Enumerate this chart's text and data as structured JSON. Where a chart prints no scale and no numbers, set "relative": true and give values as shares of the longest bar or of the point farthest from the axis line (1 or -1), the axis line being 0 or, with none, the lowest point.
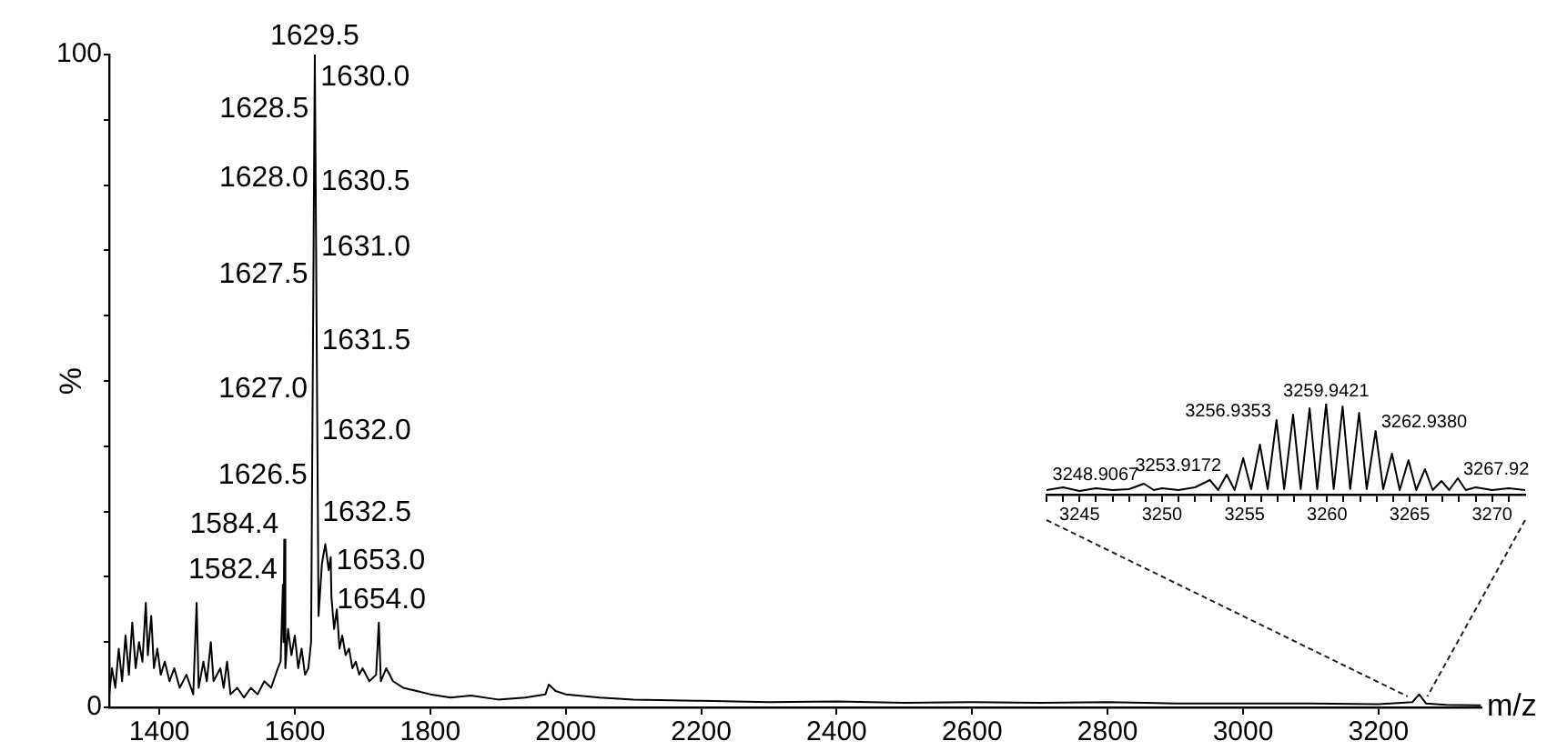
{
  "chart_data": [
    {
      "type": "line",
      "xlabel": "m/z",
      "ylabel": "%",
      "xlim": [
        1326,
        3352
      ],
      "xticks": [
        1400,
        1600,
        1800,
        2000,
        2200,
        2400,
        2600,
        2800,
        3000,
        3200
      ],
      "ylim": [
        0,
        100
      ],
      "yticks": [
        0,
        {
          "value": 10,
          "label": null
        },
        {
          "value": 20,
          "label": null
        },
        {
          "value": 30,
          "label": null
        },
        {
          "value": 40,
          "label": null
        },
        {
          "value": 50,
          "label": null
        },
        {
          "value": 60,
          "label": null
        },
        {
          "value": 70,
          "label": null
        },
        {
          "value": 80,
          "label": null
        },
        {
          "value": 90,
          "label": null
        },
        100
      ],
      "marker": "none",
      "series": [
        {
          "color": "#000000",
          "x": [
            1326,
            1330,
            1335,
            1340,
            1345,
            1350,
            1355,
            1360,
            1365,
            1370,
            1375,
            1380,
            1383,
            1388,
            1392,
            1397,
            1402,
            1408,
            1415,
            1422,
            1430,
            1440,
            1450,
            1455,
            1458,
            1465,
            1470,
            1476,
            1480,
            1490,
            1495,
            1500,
            1505,
            1515,
            1525,
            1535,
            1545,
            1555,
            1565,
            1575,
            1579,
            1582.4,
            1583.3,
            1584.4,
            1586,
            1590,
            1595,
            1600,
            1605,
            1610,
            1615,
            1620,
            1624,
            1629.5,
            1635,
            1640,
            1645,
            1650,
            1653,
            1654,
            1658,
            1662,
            1666,
            1670,
            1675,
            1680,
            1685,
            1690,
            1695,
            1700,
            1710,
            1720,
            1724,
            1727,
            1735,
            1745,
            1760,
            1780,
            1800,
            1830,
            1860,
            1900,
            1940,
            1970,
            1975,
            1985,
            2000,
            2050,
            2100,
            2200,
            2300,
            2400,
            2500,
            2600,
            2700,
            2800,
            2900,
            3000,
            3100,
            3200,
            3250,
            3260,
            3270,
            3300,
            3350
          ],
          "values": [
            2,
            6,
            3,
            9,
            4,
            11,
            5,
            13,
            6,
            10,
            7,
            16,
            8,
            14,
            6,
            9,
            5,
            7,
            4,
            6,
            3,
            5,
            2,
            16,
            3,
            7,
            4,
            10,
            4,
            6,
            3,
            7,
            2,
            3,
            1.5,
            3,
            2,
            4,
            3,
            6,
            7,
            18.8,
            10,
            25.7,
            6,
            12,
            8,
            11,
            6,
            9,
            5,
            6,
            10,
            100,
            14,
            22,
            25,
            21,
            23,
            17,
            12,
            15,
            9,
            11,
            8,
            9,
            6,
            7,
            5,
            6,
            4,
            5,
            13,
            4,
            6,
            4,
            3,
            2.5,
            2,
            1.5,
            1.8,
            1.2,
            1.5,
            2,
            3.5,
            2.5,
            2,
            1.5,
            1.2,
            1,
            0.8,
            0.9,
            0.7,
            0.8,
            0.7,
            0.8,
            0.6,
            0.6,
            0.6,
            0.5,
            0.8,
            2,
            0.6,
            0.4,
            0.3
          ]
        }
      ],
      "annotations": [
        {
          "text": "1629.5",
          "x": 1629.5,
          "y": 100
        },
        {
          "text": "1630.0",
          "x": 1630,
          "y": 97
        },
        {
          "text": "1628.5",
          "x": 1628.5,
          "y": 89.4
        },
        {
          "text": "1630.5",
          "x": 1630.5,
          "y": 81
        },
        {
          "text": "1628.0",
          "x": 1628,
          "y": 78.8
        },
        {
          "text": "1631.0",
          "x": 1631,
          "y": 71
        },
        {
          "text": "1627.5",
          "x": 1627.5,
          "y": 64
        },
        {
          "text": "1631.5",
          "x": 1631.5,
          "y": 56.7
        },
        {
          "text": "1627.0",
          "x": 1627,
          "y": 46.5
        },
        {
          "text": "1632.0",
          "x": 1632,
          "y": 42.9
        },
        {
          "text": "1626.5",
          "x": 1626.5,
          "y": 33.2
        },
        {
          "text": "1632.5",
          "x": 1632.5,
          "y": 30.4
        },
        {
          "text": "1584.4",
          "x": 1584.4,
          "y": 25.7
        },
        {
          "text": "1653.0",
          "x": 1653,
          "y": 23
        },
        {
          "text": "1582.4",
          "x": 1582.4,
          "y": 18.8
        },
        {
          "text": "1654.0",
          "x": 1654,
          "y": 17
        }
      ]
    },
    {
      "type": "line",
      "relative": true,
      "xlim": [
        3243,
        3272
      ],
      "xticks": [
        {
          "value": 3243,
          "label": null
        },
        {
          "value": 3244,
          "label": null
        },
        3245,
        {
          "value": 3246,
          "label": null
        },
        {
          "value": 3247,
          "label": null
        },
        {
          "value": 3248,
          "label": null
        },
        {
          "value": 3249,
          "label": null
        },
        3250,
        {
          "value": 3251,
          "label": null
        },
        {
          "value": 3252,
          "label": null
        },
        {
          "value": 3253,
          "label": null
        },
        {
          "value": 3254,
          "label": null
        },
        3255,
        {
          "value": 3256,
          "label": null
        },
        {
          "value": 3257,
          "label": null
        },
        {
          "value": 3258,
          "label": null
        },
        {
          "value": 3259,
          "label": null
        },
        3260,
        {
          "value": 3261,
          "label": null
        },
        {
          "value": 3262,
          "label": null
        },
        {
          "value": 3263,
          "label": null
        },
        {
          "value": 3264,
          "label": null
        },
        3265,
        {
          "value": 3266,
          "label": null
        },
        {
          "value": 3267,
          "label": null
        },
        {
          "value": 3268,
          "label": null
        },
        {
          "value": 3269,
          "label": null
        },
        3270,
        {
          "value": 3271,
          "label": null
        }
      ],
      "marker": "none",
      "series": [
        {
          "color": "#000000",
          "x": [
            3243,
            3244,
            3245,
            3246,
            3247,
            3248,
            3248.9067,
            3249.5,
            3250,
            3251,
            3252,
            3252.9,
            3253.4,
            3253.9172,
            3254.4,
            3254.92,
            3255.4,
            3255.93,
            3256.4,
            3256.9353,
            3257.4,
            3257.94,
            3258.4,
            3258.94,
            3259.4,
            3259.9421,
            3260.4,
            3260.94,
            3261.4,
            3261.94,
            3262.4,
            3262.938,
            3263.4,
            3263.93,
            3264.4,
            3264.93,
            3265.4,
            3265.93,
            3266.4,
            3266.93,
            3267.4,
            3267.92,
            3268.4,
            3269,
            3270,
            3271,
            3272
          ],
          "values": [
            0.05,
            0.08,
            0.04,
            0.07,
            0.05,
            0.06,
            0.12,
            0.05,
            0.07,
            0.05,
            0.08,
            0.16,
            0.05,
            0.22,
            0.05,
            0.4,
            0.06,
            0.55,
            0.06,
            0.82,
            0.06,
            0.88,
            0.06,
            0.95,
            0.06,
            1,
            0.06,
            0.97,
            0.06,
            0.9,
            0.06,
            0.7,
            0.06,
            0.45,
            0.05,
            0.38,
            0.05,
            0.28,
            0.05,
            0.15,
            0.05,
            0.18,
            0.05,
            0.08,
            0.05,
            0.07,
            0.05
          ]
        }
      ],
      "annotations": [
        {
          "text": "3248.9067",
          "x": 3248.9067,
          "y": 0.12
        },
        {
          "text": "3253.9172",
          "x": 3253.9172,
          "y": 0.22
        },
        {
          "text": "3256.9353",
          "x": 3256.9353,
          "y": 0.82
        },
        {
          "text": "3259.9421",
          "x": 3259.9421,
          "y": 1
        },
        {
          "text": "3262.9380",
          "x": 3262.938,
          "y": 0.7
        },
        {
          "text": "3267.92",
          "x": 3267.92,
          "y": 0.18
        }
      ]
    }
  ]
}
